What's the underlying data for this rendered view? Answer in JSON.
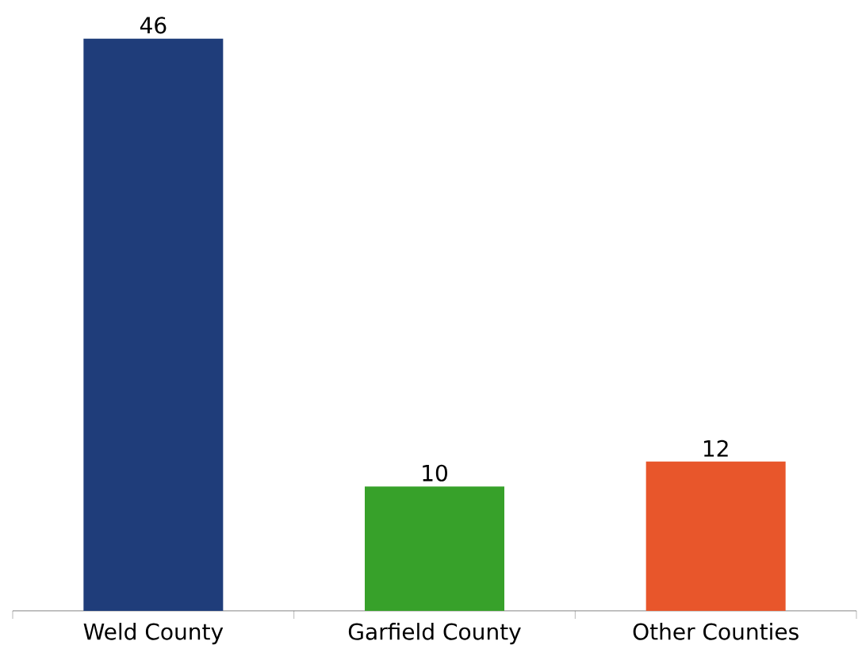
{
  "chart_data": {
    "type": "bar",
    "categories": [
      "Weld County",
      "Garfield County",
      "Other Counties"
    ],
    "values": [
      46,
      10,
      12
    ],
    "colors": [
      "#1f3d7a",
      "#37a12a",
      "#e8562b"
    ],
    "data_labels": true
  }
}
